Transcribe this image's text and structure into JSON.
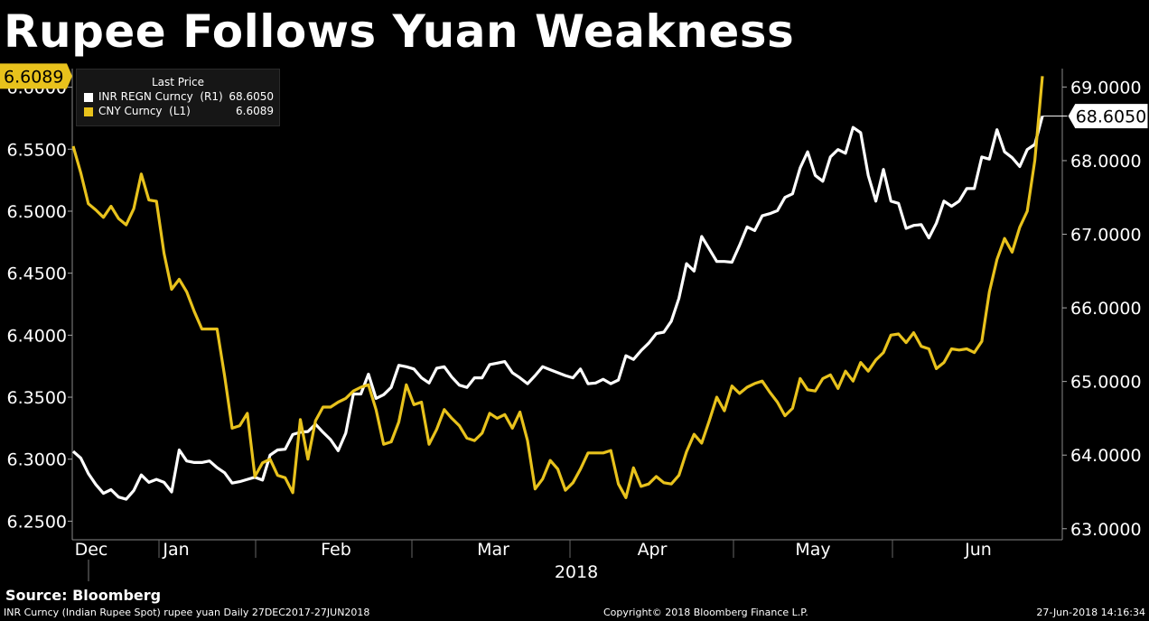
{
  "title": "Rupee Follows Yuan Weakness",
  "legend": {
    "header": "Last Price",
    "items": [
      {
        "name": "INR REGN Curncy  (R1)",
        "value": "68.6050",
        "color": "#ffffff"
      },
      {
        "name": "CNY Curncy  (L1)",
        "value": "6.6089",
        "color": "#e8c21c"
      }
    ]
  },
  "source": "Source: Bloomberg",
  "footer": {
    "left": "INR Curncy (Indian Rupee Spot) rupee yuan  Daily 27DEC2017-27JUN2018",
    "center": "Copyright© 2018 Bloomberg Finance L.P.",
    "right": "27-Jun-2018 14:16:34"
  },
  "chart_data": {
    "type": "line",
    "x_labels": [
      "Dec",
      "Jan",
      "Feb",
      "Mar",
      "Apr",
      "May",
      "Jun"
    ],
    "x_year_label": "2018",
    "left_axis": {
      "ticks": [
        "6.2500",
        "6.3000",
        "6.3500",
        "6.4000",
        "6.4500",
        "6.5000",
        "6.5500",
        "6.6000"
      ],
      "range": [
        6.235,
        6.615
      ],
      "last_value": "6.6089",
      "last_color": "#e8c21c"
    },
    "right_axis": {
      "ticks": [
        "63.0000",
        "64.0000",
        "65.0000",
        "66.0000",
        "67.0000",
        "68.0000",
        "69.0000"
      ],
      "range": [
        62.85,
        69.25
      ],
      "last_value": "68.6050",
      "last_color": "#ffffff"
    },
    "series": [
      {
        "name": "INR REGN Curncy",
        "axis": "right",
        "color": "#ffffff",
        "values": [
          64.05,
          63.96,
          63.75,
          63.6,
          63.48,
          63.53,
          63.43,
          63.4,
          63.52,
          63.73,
          63.63,
          63.67,
          63.63,
          63.5,
          64.07,
          63.92,
          63.9,
          63.9,
          63.92,
          63.83,
          63.76,
          63.62,
          63.64,
          63.67,
          63.7,
          63.66,
          64.0,
          64.07,
          64.08,
          64.28,
          64.31,
          64.32,
          64.42,
          64.31,
          64.21,
          64.06,
          64.3,
          64.83,
          64.83,
          65.1,
          64.77,
          64.82,
          64.92,
          65.22,
          65.2,
          65.17,
          65.05,
          64.98,
          65.18,
          65.2,
          65.06,
          64.95,
          64.92,
          65.05,
          65.05,
          65.23,
          65.25,
          65.27,
          65.12,
          65.05,
          64.97,
          65.08,
          65.2,
          65.16,
          65.12,
          65.08,
          65.05,
          65.17,
          64.97,
          64.98,
          65.03,
          64.97,
          65.02,
          65.35,
          65.3,
          65.42,
          65.52,
          65.65,
          65.67,
          65.82,
          66.13,
          66.6,
          66.5,
          66.97,
          66.8,
          66.63,
          66.63,
          66.62,
          66.85,
          67.1,
          67.05,
          67.25,
          67.28,
          67.32,
          67.5,
          67.55,
          67.9,
          68.12,
          67.8,
          67.72,
          68.05,
          68.15,
          68.1,
          68.45,
          68.38,
          67.8,
          67.45,
          67.88,
          67.45,
          67.42,
          67.08,
          67.12,
          67.13,
          66.95,
          67.15,
          67.45,
          67.38,
          67.45,
          67.62,
          67.62,
          68.05,
          68.02,
          68.42,
          68.12,
          68.04,
          67.92,
          68.15,
          68.22,
          68.605
        ]
      },
      {
        "name": "CNY Curncy",
        "axis": "left",
        "color": "#e8c21c",
        "values": [
          6.5525,
          6.531,
          6.506,
          6.501,
          6.495,
          6.504,
          6.494,
          6.489,
          6.502,
          6.53,
          6.509,
          6.508,
          6.466,
          6.437,
          6.445,
          6.435,
          6.419,
          6.405,
          6.405,
          6.405,
          6.367,
          6.325,
          6.327,
          6.337,
          6.286,
          6.297,
          6.3,
          6.287,
          6.285,
          6.273,
          6.332,
          6.3,
          6.331,
          6.342,
          6.342,
          6.346,
          6.349,
          6.355,
          6.358,
          6.36,
          6.34,
          6.312,
          6.314,
          6.33,
          6.36,
          6.344,
          6.346,
          6.312,
          6.324,
          6.34,
          6.333,
          6.327,
          6.317,
          6.315,
          6.321,
          6.337,
          6.333,
          6.336,
          6.325,
          6.338,
          6.315,
          6.276,
          6.284,
          6.299,
          6.292,
          6.275,
          6.281,
          6.292,
          6.305,
          6.305,
          6.305,
          6.307,
          6.28,
          6.269,
          6.293,
          6.278,
          6.28,
          6.286,
          6.281,
          6.28,
          6.287,
          6.306,
          6.32,
          6.313,
          6.331,
          6.35,
          6.339,
          6.359,
          6.353,
          6.358,
          6.361,
          6.363,
          6.354,
          6.346,
          6.335,
          6.341,
          6.365,
          6.356,
          6.355,
          6.365,
          6.368,
          6.357,
          6.371,
          6.363,
          6.378,
          6.371,
          6.38,
          6.386,
          6.4,
          6.401,
          6.394,
          6.402,
          6.391,
          6.389,
          6.373,
          6.378,
          6.389,
          6.388,
          6.389,
          6.386,
          6.395,
          6.435,
          6.461,
          6.478,
          6.467,
          6.487,
          6.5,
          6.541,
          6.6089
        ]
      }
    ]
  }
}
